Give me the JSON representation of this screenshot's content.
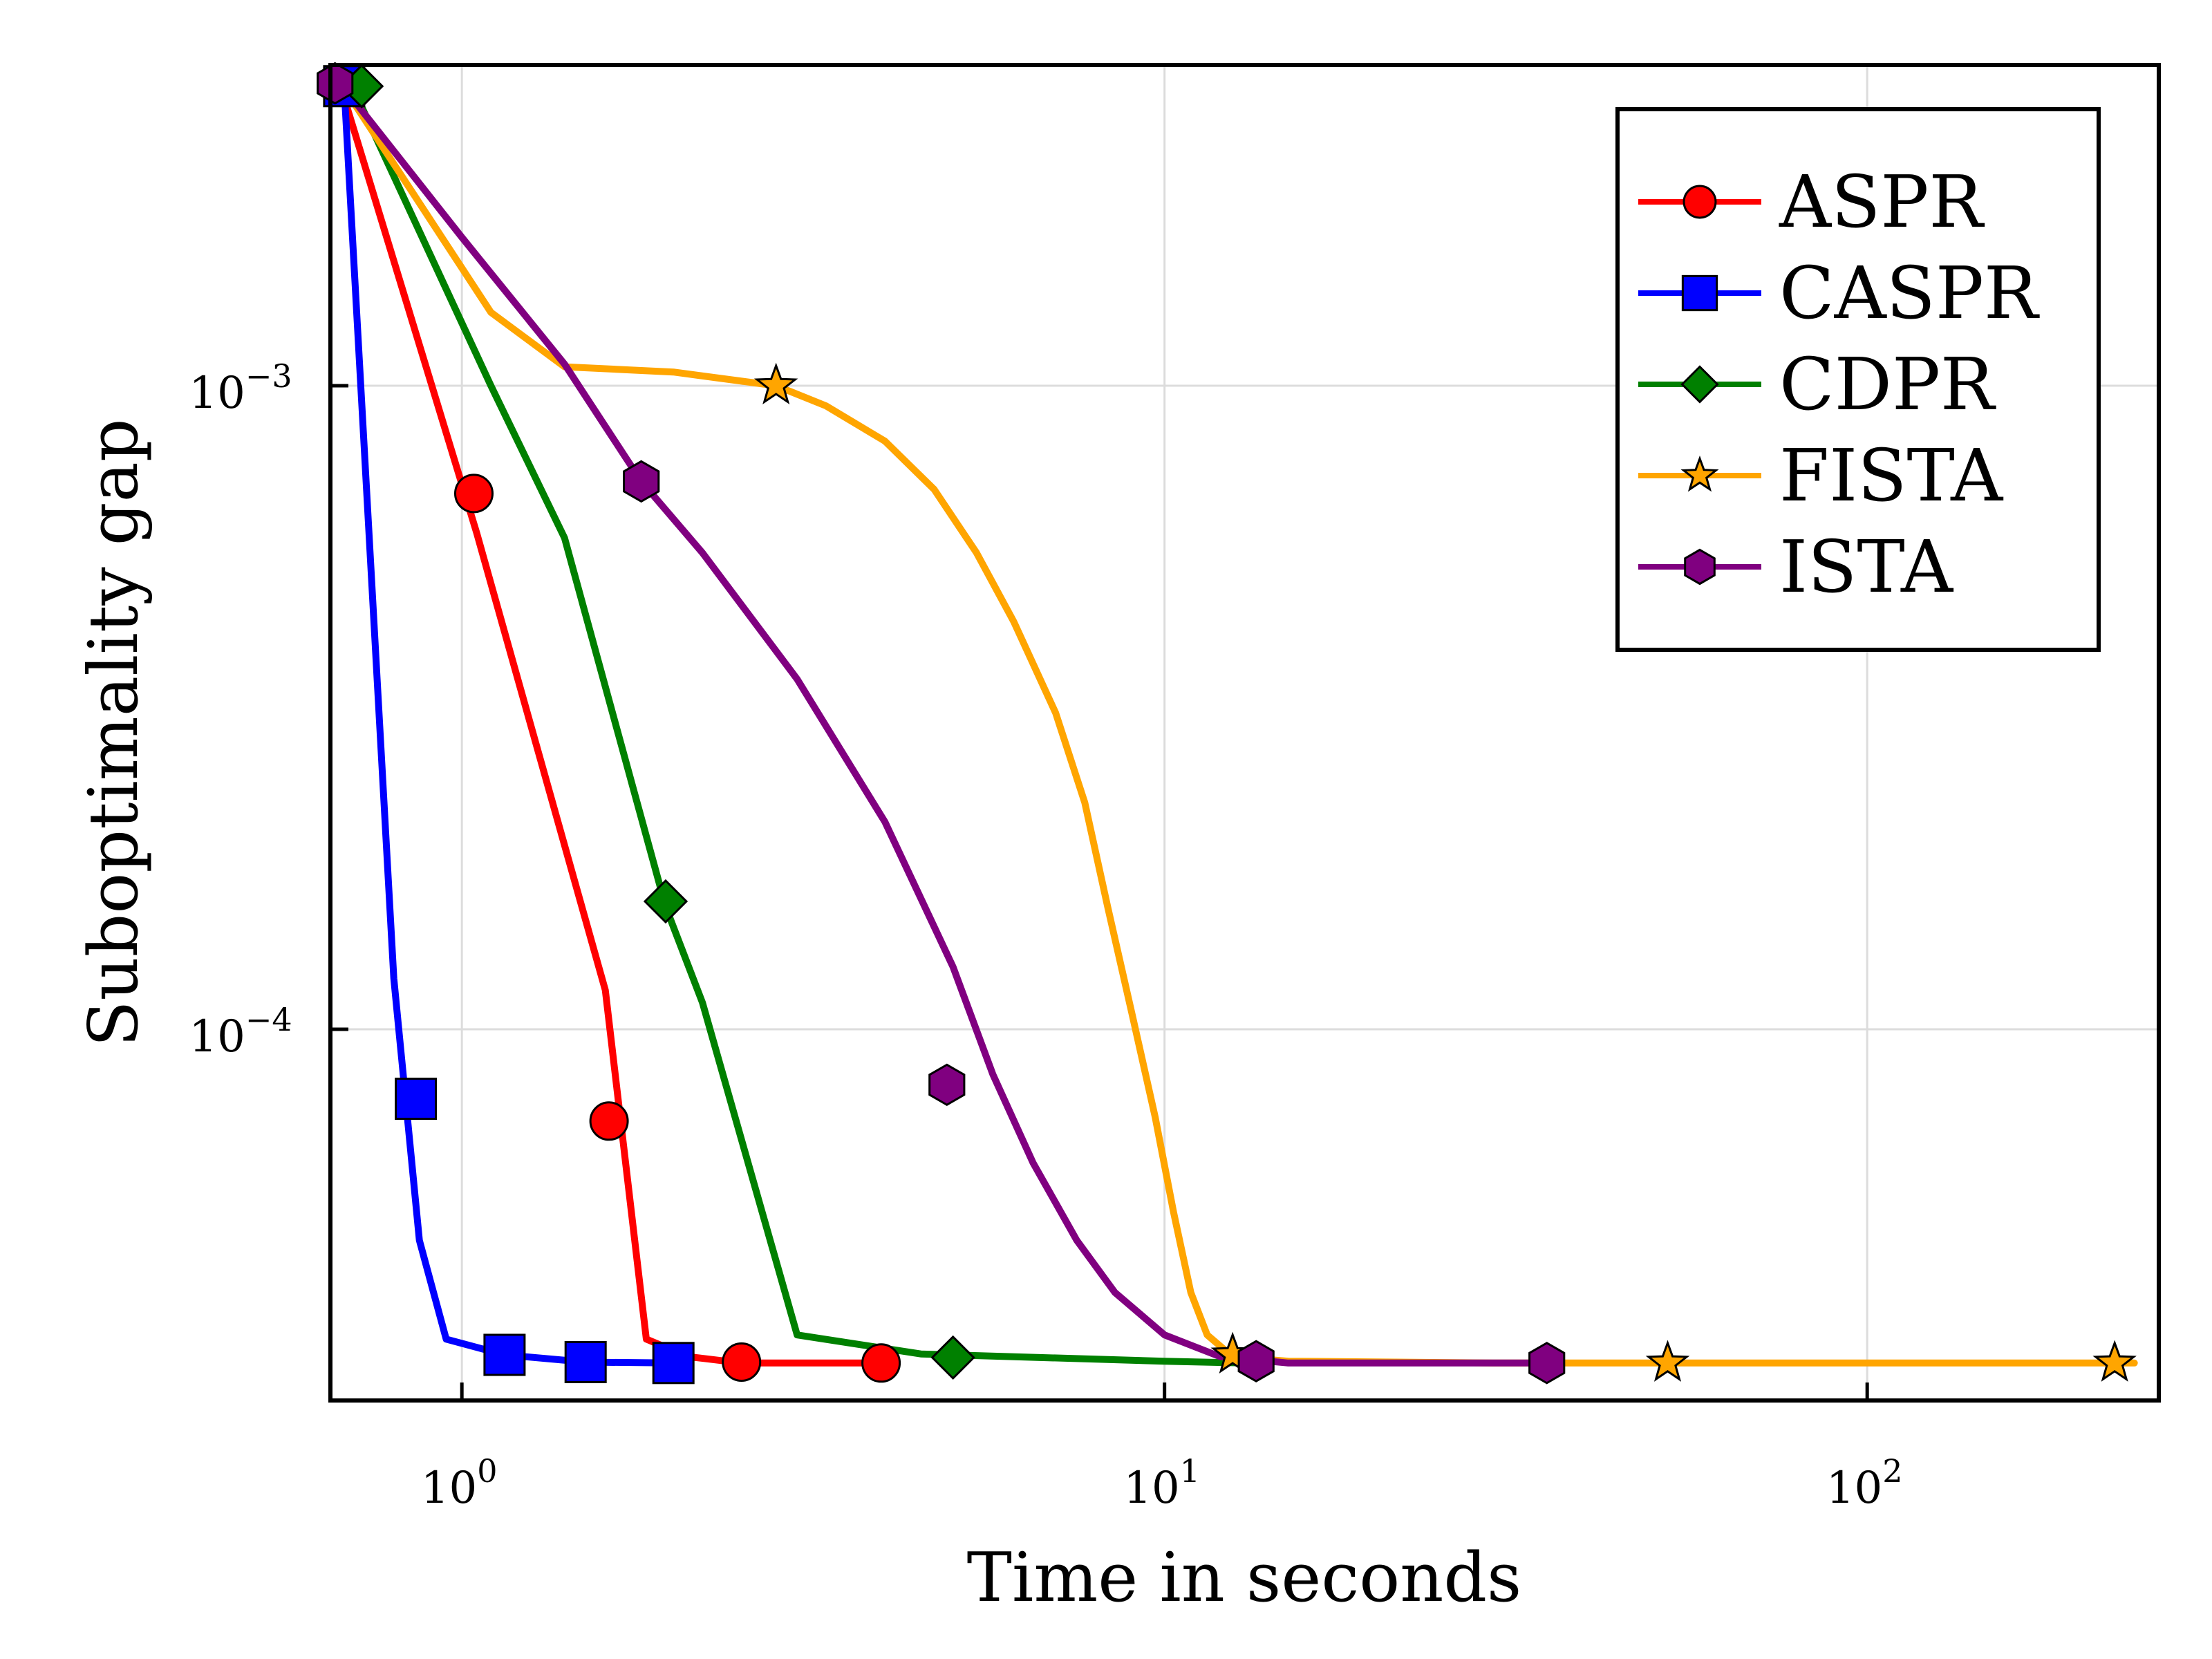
{
  "chart_data": {
    "type": "line",
    "xlabel": "Time in seconds",
    "ylabel": "Suboptimality gap",
    "xscale": "log",
    "yscale": "log",
    "xlim": [
      0.65,
      260
    ],
    "ylim": [
      2.65e-05,
      0.00315
    ],
    "grid": true,
    "legend_position": "top-right",
    "x_ticks": [
      {
        "value": 1,
        "base": "10",
        "exp": "0"
      },
      {
        "value": 10,
        "base": "10",
        "exp": "1"
      },
      {
        "value": 100,
        "base": "10",
        "exp": "2"
      }
    ],
    "y_ticks": [
      {
        "value": 0.001,
        "base": "10",
        "exp": "−3"
      },
      {
        "value": 0.0001,
        "base": "10",
        "exp": "−4"
      }
    ],
    "series": [
      {
        "name": "ASPR",
        "color": "#ff0000",
        "marker": "circle",
        "line": [
          [
            0.68,
            0.0028
          ],
          [
            1.05,
            0.00059
          ],
          [
            1.6,
            0.000115
          ],
          [
            1.83,
            3.3e-05
          ],
          [
            2.1,
            3.1e-05
          ],
          [
            2.5,
            3.03e-05
          ],
          [
            4.0,
            3.03e-05
          ]
        ],
        "markers": [
          [
            1.04,
            0.00068
          ],
          [
            1.62,
            7.2e-05
          ],
          [
            2.5,
            3.04e-05
          ],
          [
            3.95,
            3.03e-05
          ]
        ]
      },
      {
        "name": "CASPR",
        "color": "#0000ff",
        "marker": "square",
        "line": [
          [
            0.68,
            0.0029
          ],
          [
            0.8,
            0.00012
          ],
          [
            0.87,
            4.7e-05
          ],
          [
            0.95,
            3.3e-05
          ],
          [
            1.15,
            3.12e-05
          ],
          [
            1.5,
            3.04e-05
          ],
          [
            2.0,
            3.03e-05
          ]
        ],
        "markers": [
          [
            0.68,
            0.00292
          ],
          [
            0.86,
            7.8e-05
          ],
          [
            1.15,
            3.12e-05
          ],
          [
            1.5,
            3.04e-05
          ],
          [
            2.0,
            3.03e-05
          ]
        ]
      },
      {
        "name": "CDPR",
        "color": "#008000",
        "marker": "diamond",
        "line": [
          [
            0.7,
            0.0029
          ],
          [
            1.1,
            0.001
          ],
          [
            1.4,
            0.00058
          ],
          [
            1.95,
            0.000155
          ],
          [
            2.2,
            0.00011
          ],
          [
            3.0,
            3.35e-05
          ],
          [
            4.5,
            3.13e-05
          ],
          [
            10,
            3.05e-05
          ],
          [
            13,
            3.03e-05
          ]
        ],
        "markers": [
          [
            0.72,
            0.00292
          ],
          [
            1.95,
            0.000158
          ],
          [
            5.0,
            3.09e-05
          ]
        ]
      },
      {
        "name": "FISTA",
        "color": "#ffa500",
        "marker": "star",
        "line": [
          [
            0.68,
            0.0029
          ],
          [
            1.1,
            0.0013
          ],
          [
            1.4,
            0.00107
          ],
          [
            2.0,
            0.00105
          ],
          [
            2.8,
            0.001
          ],
          [
            3.3,
            0.00093
          ],
          [
            4.0,
            0.00082
          ],
          [
            4.7,
            0.00069
          ],
          [
            5.4,
            0.00055
          ],
          [
            6.1,
            0.00043
          ],
          [
            7.0,
            0.00031
          ],
          [
            7.7,
            0.000225
          ],
          [
            8.3,
            0.000155
          ],
          [
            9.0,
            0.000105
          ],
          [
            9.7,
            7.3e-05
          ],
          [
            10.3,
            5.2e-05
          ],
          [
            10.9,
            3.9e-05
          ],
          [
            11.5,
            3.35e-05
          ],
          [
            12.5,
            3.1e-05
          ],
          [
            15,
            3.05e-05
          ],
          [
            30,
            3.03e-05
          ],
          [
            240,
            3.03e-05
          ]
        ],
        "markers": [
          [
            2.8,
            0.001
          ],
          [
            12.5,
            3.12e-05
          ],
          [
            52,
            3.03e-05
          ],
          [
            225,
            3.03e-05
          ]
        ]
      },
      {
        "name": "ISTA",
        "color": "#800080",
        "marker": "hexagon",
        "line": [
          [
            0.68,
            0.0029
          ],
          [
            1.0,
            0.0017
          ],
          [
            1.4,
            0.00108
          ],
          [
            1.8,
            0.00071
          ],
          [
            2.2,
            0.00055
          ],
          [
            3.0,
            0.00035
          ],
          [
            4.0,
            0.00021
          ],
          [
            5.0,
            0.000125
          ],
          [
            5.7,
            8.5e-05
          ],
          [
            6.5,
            6.2e-05
          ],
          [
            7.5,
            4.7e-05
          ],
          [
            8.5,
            3.9e-05
          ],
          [
            10,
            3.35e-05
          ],
          [
            12,
            3.1e-05
          ],
          [
            15,
            3.03e-05
          ],
          [
            35,
            3.03e-05
          ]
        ],
        "markers": [
          [
            0.66,
            0.00295
          ],
          [
            1.8,
            0.00071
          ],
          [
            4.9,
            8.2e-05
          ],
          [
            13.5,
            3.05e-05
          ],
          [
            35,
            3.03e-05
          ]
        ]
      }
    ]
  }
}
